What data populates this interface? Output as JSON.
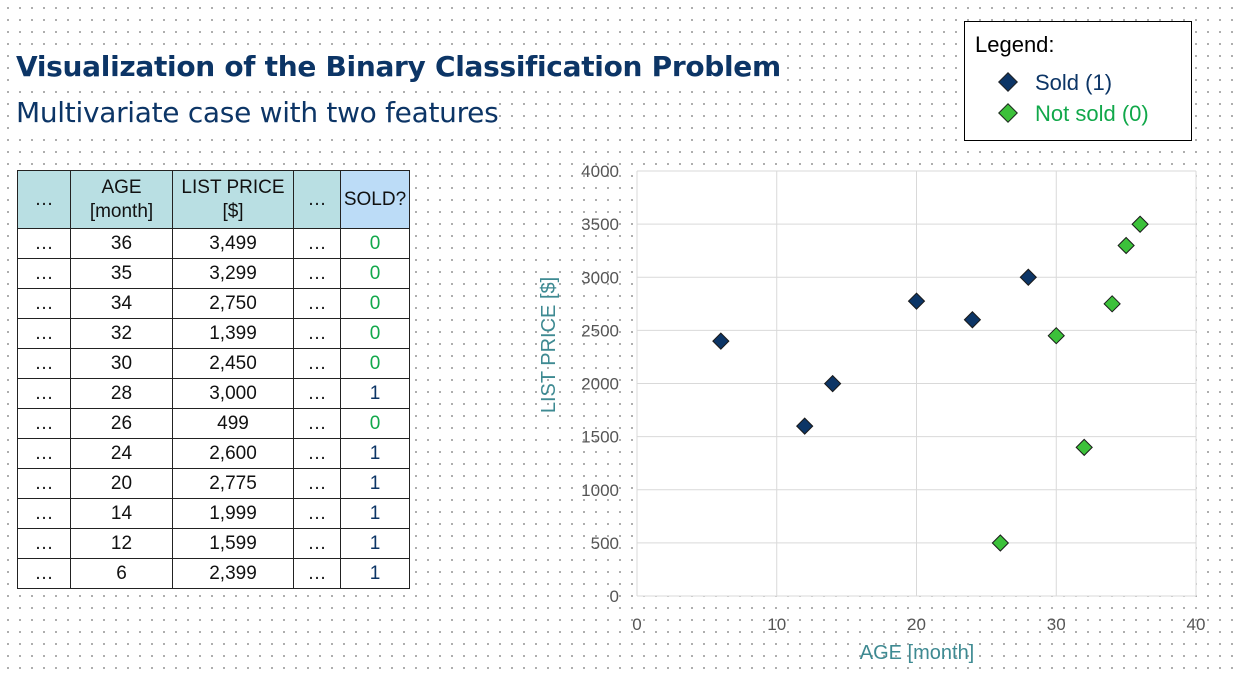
{
  "header": {
    "title": "Visualization of the Binary Classification Problem",
    "subtitle": "Multivariate case with two features"
  },
  "legend": {
    "title": "Legend:",
    "sold_label": "Sold (1)",
    "not_sold_label": "Not sold (0)"
  },
  "table": {
    "headers": [
      "…",
      "AGE\n[month]",
      "LIST PRICE\n[$]",
      "…",
      "SOLD?"
    ],
    "rows": [
      [
        "…",
        "36",
        "3,499",
        "…",
        "0"
      ],
      [
        "…",
        "35",
        "3,299",
        "…",
        "0"
      ],
      [
        "…",
        "34",
        "2,750",
        "…",
        "0"
      ],
      [
        "…",
        "32",
        "1,399",
        "…",
        "0"
      ],
      [
        "…",
        "30",
        "2,450",
        "…",
        "0"
      ],
      [
        "…",
        "28",
        "3,000",
        "…",
        "1"
      ],
      [
        "…",
        "26",
        "499",
        "…",
        "0"
      ],
      [
        "…",
        "24",
        "2,600",
        "…",
        "1"
      ],
      [
        "…",
        "20",
        "2,775",
        "…",
        "1"
      ],
      [
        "…",
        "14",
        "1,999",
        "…",
        "1"
      ],
      [
        "…",
        "12",
        "1,599",
        "…",
        "1"
      ],
      [
        "…",
        "6",
        "2,399",
        "…",
        "1"
      ]
    ]
  },
  "colors": {
    "sold": "#0c3566",
    "not_sold": "#3cc13a",
    "axis_label": "#3e8a92"
  },
  "chart_data": {
    "type": "scatter",
    "title": "",
    "xlabel": "AGE [month]",
    "ylabel": "LIST PRICE [$]",
    "xlim": [
      0,
      40
    ],
    "ylim": [
      0,
      4000
    ],
    "xticks": [
      0,
      10,
      20,
      30,
      40
    ],
    "yticks": [
      0,
      500,
      1000,
      1500,
      2000,
      2500,
      3000,
      3500,
      4000
    ],
    "grid": true,
    "legend_position": "top-right",
    "series": [
      {
        "name": "Sold (1)",
        "color": "#0c3566",
        "x": [
          28,
          24,
          20,
          14,
          12,
          6
        ],
        "y": [
          3000,
          2600,
          2775,
          1999,
          1599,
          2399
        ]
      },
      {
        "name": "Not sold (0)",
        "color": "#3cc13a",
        "x": [
          36,
          35,
          34,
          32,
          30,
          26
        ],
        "y": [
          3499,
          3299,
          2750,
          1399,
          2450,
          499
        ]
      }
    ]
  }
}
